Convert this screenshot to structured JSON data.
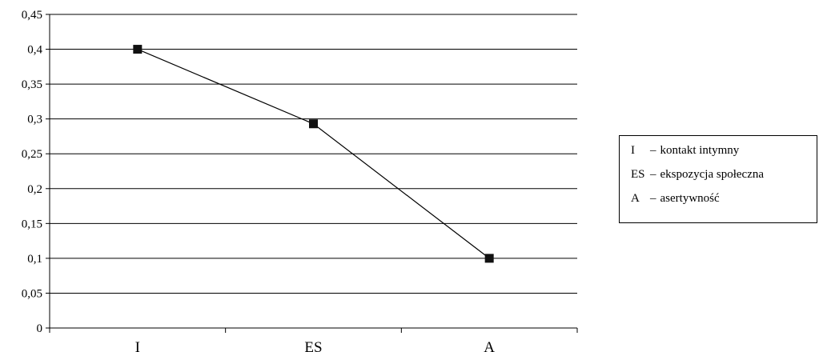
{
  "chart_data": {
    "type": "line",
    "categories": [
      "I",
      "ES",
      "A"
    ],
    "series": [
      {
        "values": [
          0.4,
          0.293,
          0.1
        ]
      }
    ],
    "ylim": [
      0,
      0.45
    ],
    "yticks": [
      "0",
      "0,05",
      "0,1",
      "0,15",
      "0,2",
      "0,25",
      "0,3",
      "0,35",
      "0,4",
      "0,45"
    ],
    "grid": true,
    "legend_placement": "right",
    "legend": [
      {
        "abbr": "I",
        "dash": "–",
        "text": "kontakt intymny"
      },
      {
        "abbr": "ES",
        "dash": "–",
        "text": "ekspozycja społeczna"
      },
      {
        "abbr": "A",
        "dash": "–",
        "text": "asertywność"
      }
    ],
    "line_color": "#000000",
    "marker_color": "#111111"
  }
}
